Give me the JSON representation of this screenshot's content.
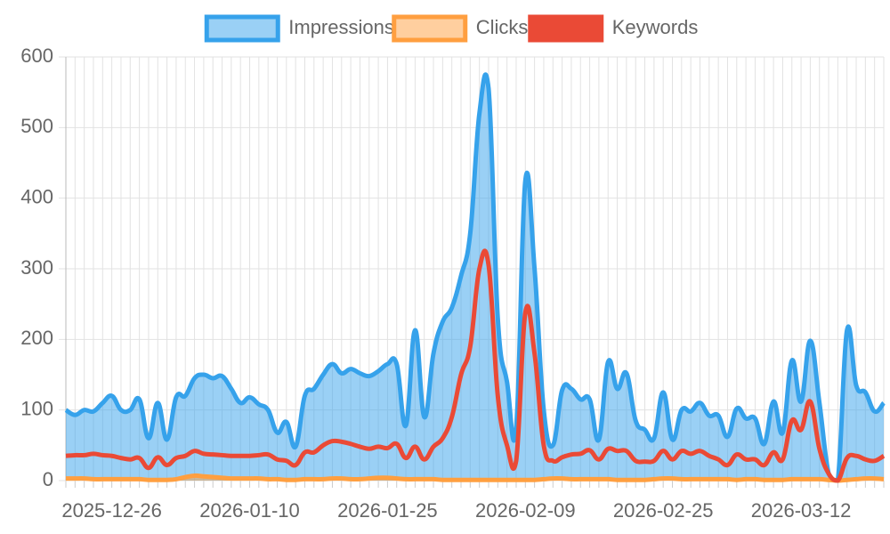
{
  "chart_data": {
    "type": "line",
    "categories": [
      null,
      null,
      null,
      null,
      null,
      "2025-12-26",
      null,
      null,
      null,
      null,
      null,
      null,
      null,
      null,
      null,
      null,
      null,
      null,
      null,
      null,
      "2026-01-10",
      null,
      null,
      null,
      null,
      null,
      null,
      null,
      null,
      null,
      null,
      null,
      null,
      null,
      null,
      "2026-01-25",
      null,
      null,
      null,
      null,
      null,
      null,
      null,
      null,
      null,
      null,
      null,
      null,
      null,
      null,
      "2026-02-09",
      null,
      null,
      null,
      null,
      null,
      null,
      null,
      null,
      null,
      null,
      null,
      null,
      null,
      null,
      "2026-02-25",
      null,
      null,
      null,
      null,
      null,
      null,
      null,
      null,
      null,
      null,
      null,
      null,
      null,
      null,
      "2026-03-12",
      null,
      null,
      null,
      null,
      null,
      null,
      null,
      null,
      null
    ],
    "series": [
      {
        "name": "Impressions",
        "color": "#36a2eb",
        "fill": true,
        "values": [
          100,
          93,
          100,
          98,
          110,
          120,
          100,
          100,
          115,
          60,
          110,
          58,
          118,
          120,
          145,
          150,
          145,
          148,
          130,
          110,
          118,
          108,
          100,
          68,
          83,
          48,
          120,
          130,
          150,
          165,
          152,
          158,
          152,
          148,
          155,
          165,
          165,
          78,
          213,
          90,
          180,
          225,
          245,
          290,
          350,
          520,
          555,
          230,
          140,
          75,
          425,
          300,
          100,
          50,
          128,
          130,
          115,
          115,
          58,
          168,
          130,
          152,
          85,
          72,
          60,
          125,
          58,
          100,
          98,
          110,
          92,
          92,
          62,
          102,
          88,
          88,
          52,
          112,
          68,
          170,
          112,
          198,
          110,
          10,
          0,
          213,
          135,
          125,
          98,
          110
        ]
      },
      {
        "name": "Clicks",
        "color": "#ff9f40",
        "fill": true,
        "values": [
          3,
          3,
          3,
          2,
          2,
          2,
          2,
          2,
          2,
          1,
          1,
          1,
          2,
          5,
          7,
          6,
          5,
          4,
          3,
          3,
          3,
          3,
          2,
          2,
          1,
          1,
          2,
          2,
          2,
          3,
          3,
          2,
          2,
          3,
          4,
          4,
          3,
          2,
          2,
          2,
          2,
          1,
          1,
          1,
          1,
          1,
          1,
          1,
          1,
          1,
          1,
          1,
          2,
          3,
          3,
          2,
          2,
          2,
          2,
          2,
          1,
          1,
          1,
          1,
          2,
          3,
          3,
          2,
          2,
          2,
          2,
          2,
          2,
          1,
          2,
          2,
          1,
          1,
          1,
          2,
          2,
          2,
          2,
          1,
          0,
          1,
          2,
          3,
          3,
          2
        ]
      },
      {
        "name": "Keywords",
        "color": "#ea4a36",
        "fill": false,
        "values": [
          35,
          36,
          36,
          38,
          36,
          35,
          32,
          30,
          32,
          18,
          33,
          22,
          32,
          35,
          42,
          38,
          37,
          36,
          35,
          35,
          35,
          36,
          37,
          30,
          28,
          22,
          40,
          40,
          50,
          56,
          55,
          52,
          48,
          45,
          48,
          46,
          52,
          32,
          48,
          30,
          48,
          60,
          90,
          150,
          190,
          300,
          305,
          120,
          50,
          28,
          238,
          180,
          50,
          28,
          33,
          37,
          38,
          43,
          30,
          45,
          42,
          42,
          28,
          27,
          28,
          42,
          30,
          42,
          38,
          42,
          35,
          30,
          22,
          37,
          30,
          30,
          22,
          40,
          30,
          85,
          72,
          112,
          45,
          10,
          0,
          32,
          35,
          30,
          28,
          35
        ]
      }
    ],
    "ylim": [
      0,
      600
    ],
    "yticks": [
      0,
      100,
      200,
      300,
      400,
      500,
      600
    ],
    "grid": true,
    "legend": "top"
  }
}
